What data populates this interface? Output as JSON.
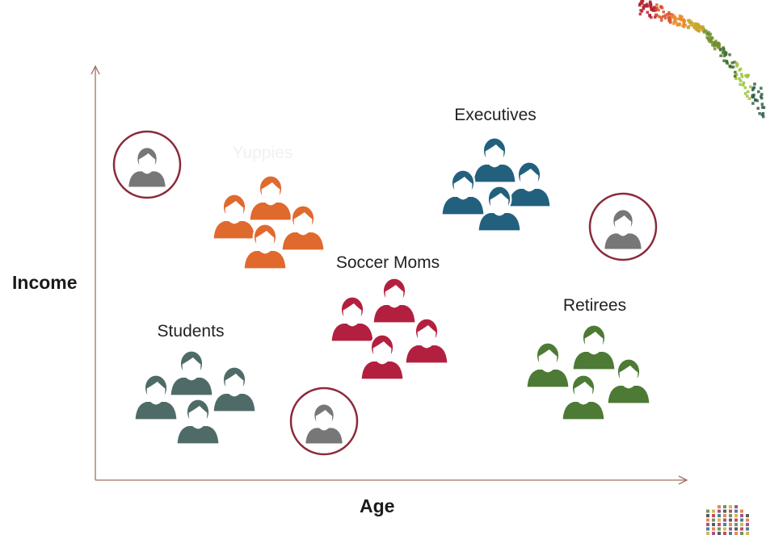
{
  "axes": {
    "x_label": "Age",
    "y_label": "Income"
  },
  "segments": [
    {
      "label": "Yuppies",
      "color": "#e0692e",
      "label_faded": true
    },
    {
      "label": "Executives",
      "color": "#22607e"
    },
    {
      "label": "Soccer Moms",
      "color": "#b3203f"
    },
    {
      "label": "Students",
      "color": "#4e6b68"
    },
    {
      "label": "Retirees",
      "color": "#4d7a34"
    }
  ],
  "individual_icon": {
    "color": "#777777",
    "ring_color": "#8b2a3a"
  },
  "axis_color": "#a07060"
}
